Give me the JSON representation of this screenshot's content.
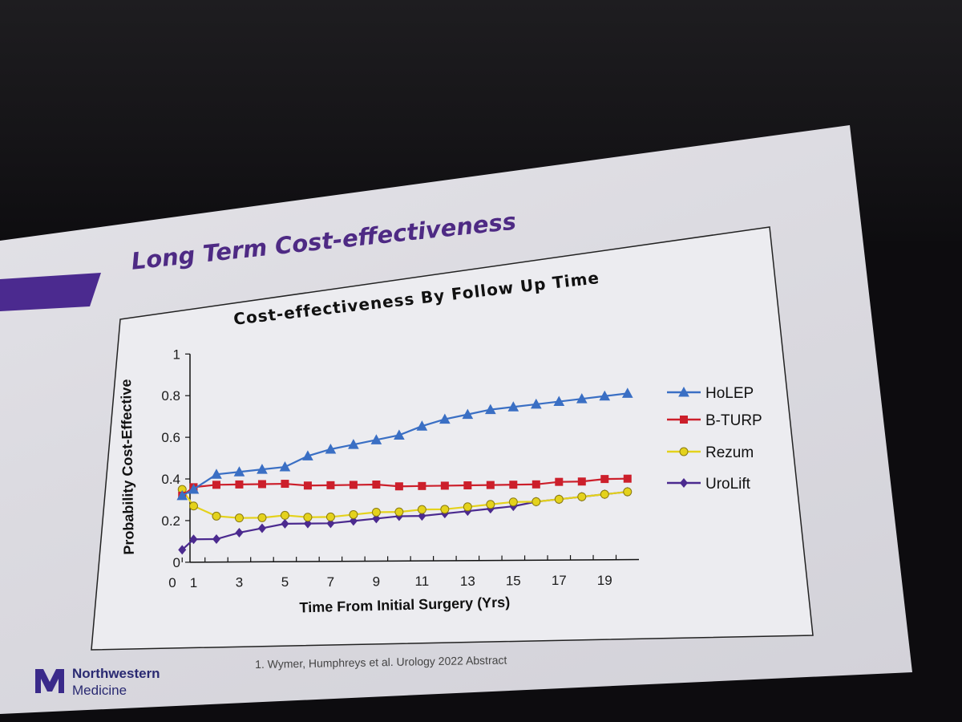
{
  "slide": {
    "title": "Long Term Cost-effectiveness",
    "citation": "1. Wymer, Humphreys et al. Urology 2022 Abstract",
    "logo": {
      "name_line1": "Northwestern",
      "name_line2": "Medicine",
      "mark": "NM"
    }
  },
  "chart_data": {
    "type": "line",
    "title": "Cost-effectiveness By Follow Up Time",
    "xlabel": "Time From Initial Surgery (Yrs)",
    "ylabel": "Probability Cost-Effective",
    "xlim": [
      0,
      20.5
    ],
    "ylim": [
      0,
      1
    ],
    "x_tick_labels": [
      "0",
      "1",
      "3",
      "5",
      "7",
      "9",
      "11",
      "13",
      "15",
      "17",
      "19"
    ],
    "y_tick_labels": [
      "0",
      "0.2",
      "0.4",
      "0.6",
      "0.8",
      "1"
    ],
    "legend_position": "right",
    "grid": false,
    "x": [
      0.5,
      1,
      2,
      3,
      4,
      5,
      6,
      7,
      8,
      9,
      10,
      11,
      12,
      13,
      14,
      15,
      16,
      17,
      18,
      19,
      20
    ],
    "series": [
      {
        "name": "HoLEP",
        "marker": "triangle",
        "color": "#3a6fc4",
        "values": [
          0.32,
          0.35,
          0.42,
          0.43,
          0.44,
          0.45,
          0.5,
          0.53,
          0.55,
          0.57,
          0.59,
          0.63,
          0.66,
          0.68,
          0.7,
          0.71,
          0.72,
          0.73,
          0.74,
          0.75,
          0.76
        ]
      },
      {
        "name": "B-TURP",
        "marker": "square",
        "color": "#cc1f2b",
        "values": [
          0.32,
          0.36,
          0.37,
          0.37,
          0.37,
          0.37,
          0.36,
          0.36,
          0.36,
          0.36,
          0.35,
          0.35,
          0.35,
          0.35,
          0.35,
          0.35,
          0.35,
          0.36,
          0.36,
          0.37,
          0.37
        ]
      },
      {
        "name": "Rezum",
        "marker": "circle",
        "color": "#e4d21c",
        "values": [
          0.35,
          0.27,
          0.22,
          0.21,
          0.21,
          0.22,
          0.21,
          0.21,
          0.22,
          0.23,
          0.23,
          0.24,
          0.24,
          0.25,
          0.26,
          0.27,
          0.27,
          0.28,
          0.29,
          0.3,
          0.31
        ]
      },
      {
        "name": "UroLift",
        "marker": "diamond",
        "color": "#4b2a8f",
        "values": [
          0.06,
          0.11,
          0.11,
          0.14,
          0.16,
          0.18,
          0.18,
          0.18,
          0.19,
          0.2,
          0.21,
          0.21,
          0.22,
          0.23,
          0.24,
          0.25,
          0.27,
          0.28,
          0.29,
          0.3,
          0.31
        ]
      }
    ]
  }
}
